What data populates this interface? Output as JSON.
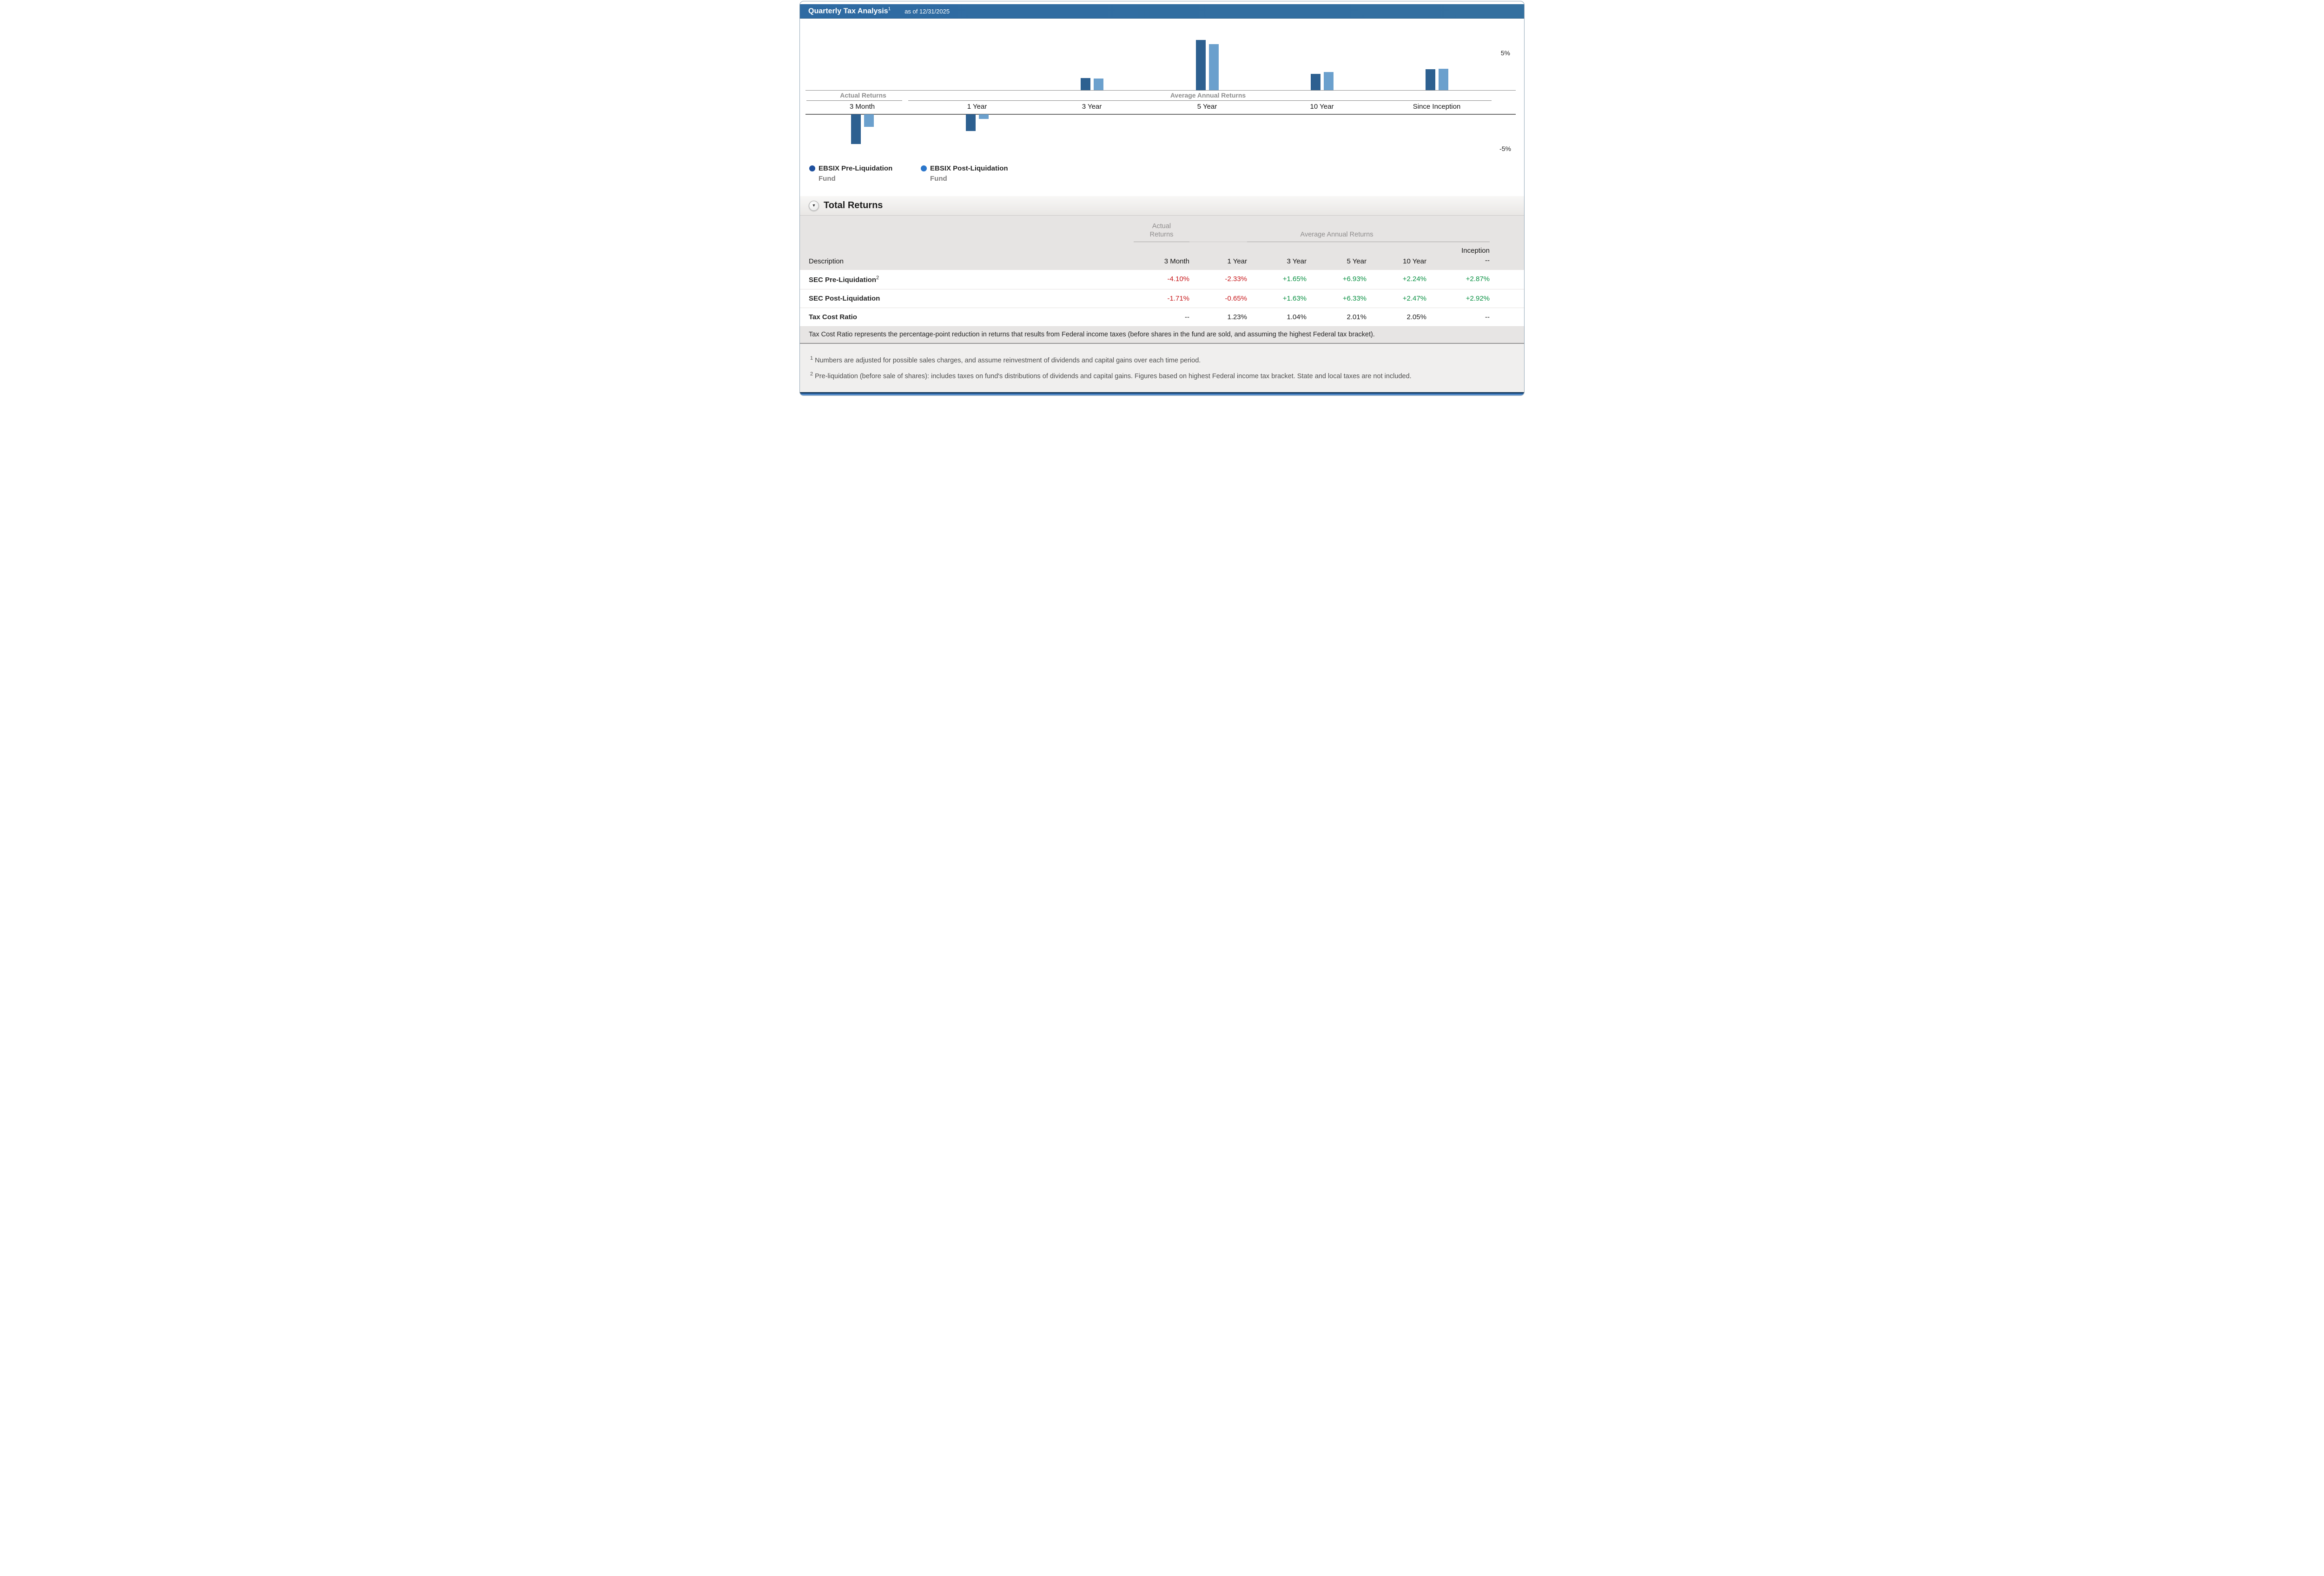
{
  "header": {
    "title": "Quarterly Tax Analysis",
    "title_sup": "1",
    "as_of": "as of 12/31/2025"
  },
  "chart_data": {
    "type": "bar",
    "categories": [
      "3 Month",
      "1 Year",
      "3 Year",
      "5 Year",
      "10 Year",
      "Since Inception"
    ],
    "series": [
      {
        "name": "EBSIX Pre-Liquidation Fund",
        "color": "#2d6090",
        "values": [
          -4.1,
          -2.33,
          1.65,
          6.93,
          2.24,
          2.87
        ]
      },
      {
        "name": "EBSIX Post-Liquidation Fund",
        "color": "#6ba0cd",
        "values": [
          -1.71,
          -0.65,
          1.63,
          6.33,
          2.47,
          2.92
        ]
      }
    ],
    "group_labels": [
      {
        "label": "Actual Returns"
      },
      {
        "label": "Average Annual Returns"
      }
    ],
    "y_axis": {
      "min": -5,
      "max": 5,
      "max_label": "5%",
      "min_label": "-5%",
      "grid": "off"
    },
    "legend_position": "bottom-left",
    "legend": [
      {
        "line1": "EBSIX Pre-Liquidation",
        "line2": "Fund",
        "dot_color": "#1f509e"
      },
      {
        "line1": "EBSIX Post-Liquidation",
        "line2": "Fund",
        "dot_color": "#2b76cb"
      }
    ]
  },
  "section": {
    "title": "Total Returns",
    "collapse_icon": "▼"
  },
  "table": {
    "description_header": "Description",
    "group_headers": {
      "actual": "Actual Returns",
      "average": "Average Annual Returns"
    },
    "period_columns": [
      "3 Month",
      "1 Year",
      "3 Year",
      "5 Year",
      "10 Year"
    ],
    "inception_header": {
      "line1": "Inception",
      "line2": "--"
    },
    "value_colors": {
      "negative": "#c7181b",
      "positive": "#0a9143",
      "neutral": "#1d1d1d"
    },
    "rows": [
      {
        "label": "SEC Pre-Liquidation",
        "label_sup": "2",
        "values": [
          {
            "text": "-4.10%",
            "tone": "negative"
          },
          {
            "text": "-2.33%",
            "tone": "negative"
          },
          {
            "text": "+1.65%",
            "tone": "positive"
          },
          {
            "text": "+6.93%",
            "tone": "positive"
          },
          {
            "text": "+2.24%",
            "tone": "positive"
          },
          {
            "text": "+2.87%",
            "tone": "positive"
          }
        ]
      },
      {
        "label": "SEC Post-Liquidation",
        "label_sup": "",
        "values": [
          {
            "text": "-1.71%",
            "tone": "negative"
          },
          {
            "text": "-0.65%",
            "tone": "negative"
          },
          {
            "text": "+1.63%",
            "tone": "positive"
          },
          {
            "text": "+6.33%",
            "tone": "positive"
          },
          {
            "text": "+2.47%",
            "tone": "positive"
          },
          {
            "text": "+2.92%",
            "tone": "positive"
          }
        ]
      },
      {
        "label": "Tax Cost Ratio",
        "label_sup": "",
        "values": [
          {
            "text": "--",
            "tone": "neutral"
          },
          {
            "text": "1.23%",
            "tone": "neutral"
          },
          {
            "text": "1.04%",
            "tone": "neutral"
          },
          {
            "text": "2.01%",
            "tone": "neutral"
          },
          {
            "text": "2.05%",
            "tone": "neutral"
          },
          {
            "text": "--",
            "tone": "neutral"
          }
        ]
      }
    ],
    "note": "Tax Cost Ratio represents the percentage-point reduction in returns that results from Federal income taxes (before shares in the fund are sold, and assuming the highest Federal tax bracket)."
  },
  "footnotes": [
    {
      "marker": "1",
      "text": "Numbers are adjusted for possible sales charges, and assume reinvestment of dividends and capital gains over each time period."
    },
    {
      "marker": "2",
      "text": "Pre-liquidation (before sale of shares): includes taxes on fund's distributions of dividends and capital gains. Figures based on highest Federal income tax bracket. State and local taxes are not included."
    }
  ]
}
